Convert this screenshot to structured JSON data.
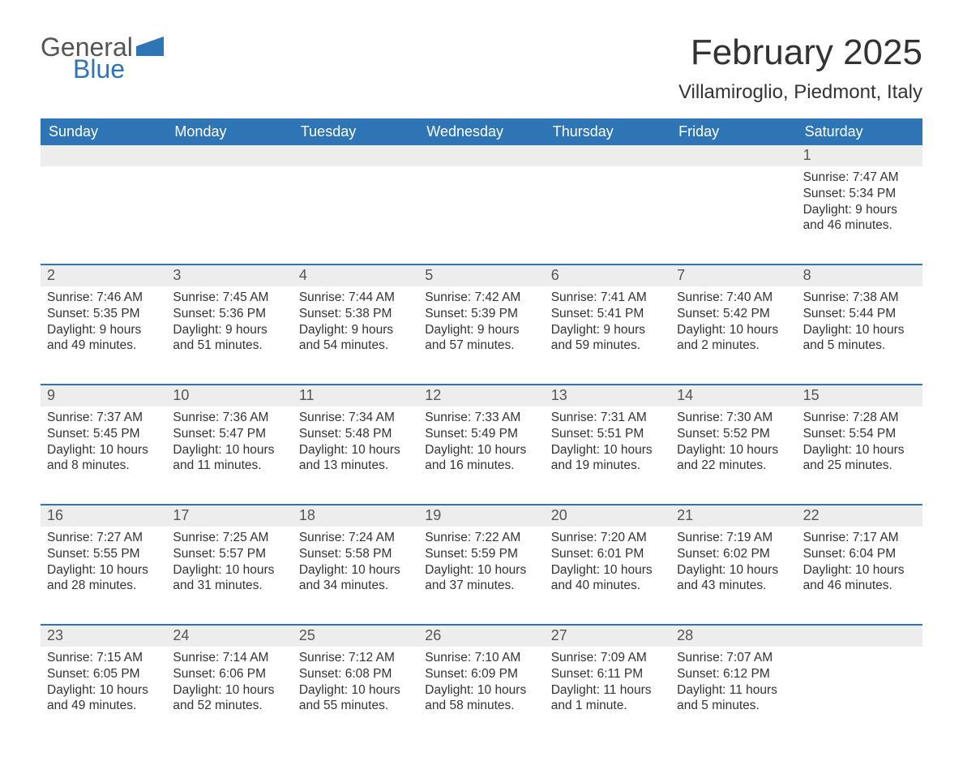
{
  "logo": {
    "general": "General",
    "blue": "Blue"
  },
  "title": "February 2025",
  "location": "Villamiroglio, Piedmont, Italy",
  "colors": {
    "header_bg": "#2e75b6",
    "header_text": "#ffffff",
    "daynum_bg": "#ededed",
    "border": "#2e75b6",
    "body_text": "#333333"
  },
  "fonts": {
    "title_size_pt": 33,
    "location_size_pt": 18,
    "weekday_size_pt": 14,
    "body_size_pt": 12
  },
  "weekdays": [
    "Sunday",
    "Monday",
    "Tuesday",
    "Wednesday",
    "Thursday",
    "Friday",
    "Saturday"
  ],
  "weeks": [
    [
      {
        "n": "",
        "sunrise": "",
        "sunset": "",
        "daylight": ""
      },
      {
        "n": "",
        "sunrise": "",
        "sunset": "",
        "daylight": ""
      },
      {
        "n": "",
        "sunrise": "",
        "sunset": "",
        "daylight": ""
      },
      {
        "n": "",
        "sunrise": "",
        "sunset": "",
        "daylight": ""
      },
      {
        "n": "",
        "sunrise": "",
        "sunset": "",
        "daylight": ""
      },
      {
        "n": "",
        "sunrise": "",
        "sunset": "",
        "daylight": ""
      },
      {
        "n": "1",
        "sunrise": "Sunrise: 7:47 AM",
        "sunset": "Sunset: 5:34 PM",
        "daylight": "Daylight: 9 hours and 46 minutes."
      }
    ],
    [
      {
        "n": "2",
        "sunrise": "Sunrise: 7:46 AM",
        "sunset": "Sunset: 5:35 PM",
        "daylight": "Daylight: 9 hours and 49 minutes."
      },
      {
        "n": "3",
        "sunrise": "Sunrise: 7:45 AM",
        "sunset": "Sunset: 5:36 PM",
        "daylight": "Daylight: 9 hours and 51 minutes."
      },
      {
        "n": "4",
        "sunrise": "Sunrise: 7:44 AM",
        "sunset": "Sunset: 5:38 PM",
        "daylight": "Daylight: 9 hours and 54 minutes."
      },
      {
        "n": "5",
        "sunrise": "Sunrise: 7:42 AM",
        "sunset": "Sunset: 5:39 PM",
        "daylight": "Daylight: 9 hours and 57 minutes."
      },
      {
        "n": "6",
        "sunrise": "Sunrise: 7:41 AM",
        "sunset": "Sunset: 5:41 PM",
        "daylight": "Daylight: 9 hours and 59 minutes."
      },
      {
        "n": "7",
        "sunrise": "Sunrise: 7:40 AM",
        "sunset": "Sunset: 5:42 PM",
        "daylight": "Daylight: 10 hours and 2 minutes."
      },
      {
        "n": "8",
        "sunrise": "Sunrise: 7:38 AM",
        "sunset": "Sunset: 5:44 PM",
        "daylight": "Daylight: 10 hours and 5 minutes."
      }
    ],
    [
      {
        "n": "9",
        "sunrise": "Sunrise: 7:37 AM",
        "sunset": "Sunset: 5:45 PM",
        "daylight": "Daylight: 10 hours and 8 minutes."
      },
      {
        "n": "10",
        "sunrise": "Sunrise: 7:36 AM",
        "sunset": "Sunset: 5:47 PM",
        "daylight": "Daylight: 10 hours and 11 minutes."
      },
      {
        "n": "11",
        "sunrise": "Sunrise: 7:34 AM",
        "sunset": "Sunset: 5:48 PM",
        "daylight": "Daylight: 10 hours and 13 minutes."
      },
      {
        "n": "12",
        "sunrise": "Sunrise: 7:33 AM",
        "sunset": "Sunset: 5:49 PM",
        "daylight": "Daylight: 10 hours and 16 minutes."
      },
      {
        "n": "13",
        "sunrise": "Sunrise: 7:31 AM",
        "sunset": "Sunset: 5:51 PM",
        "daylight": "Daylight: 10 hours and 19 minutes."
      },
      {
        "n": "14",
        "sunrise": "Sunrise: 7:30 AM",
        "sunset": "Sunset: 5:52 PM",
        "daylight": "Daylight: 10 hours and 22 minutes."
      },
      {
        "n": "15",
        "sunrise": "Sunrise: 7:28 AM",
        "sunset": "Sunset: 5:54 PM",
        "daylight": "Daylight: 10 hours and 25 minutes."
      }
    ],
    [
      {
        "n": "16",
        "sunrise": "Sunrise: 7:27 AM",
        "sunset": "Sunset: 5:55 PM",
        "daylight": "Daylight: 10 hours and 28 minutes."
      },
      {
        "n": "17",
        "sunrise": "Sunrise: 7:25 AM",
        "sunset": "Sunset: 5:57 PM",
        "daylight": "Daylight: 10 hours and 31 minutes."
      },
      {
        "n": "18",
        "sunrise": "Sunrise: 7:24 AM",
        "sunset": "Sunset: 5:58 PM",
        "daylight": "Daylight: 10 hours and 34 minutes."
      },
      {
        "n": "19",
        "sunrise": "Sunrise: 7:22 AM",
        "sunset": "Sunset: 5:59 PM",
        "daylight": "Daylight: 10 hours and 37 minutes."
      },
      {
        "n": "20",
        "sunrise": "Sunrise: 7:20 AM",
        "sunset": "Sunset: 6:01 PM",
        "daylight": "Daylight: 10 hours and 40 minutes."
      },
      {
        "n": "21",
        "sunrise": "Sunrise: 7:19 AM",
        "sunset": "Sunset: 6:02 PM",
        "daylight": "Daylight: 10 hours and 43 minutes."
      },
      {
        "n": "22",
        "sunrise": "Sunrise: 7:17 AM",
        "sunset": "Sunset: 6:04 PM",
        "daylight": "Daylight: 10 hours and 46 minutes."
      }
    ],
    [
      {
        "n": "23",
        "sunrise": "Sunrise: 7:15 AM",
        "sunset": "Sunset: 6:05 PM",
        "daylight": "Daylight: 10 hours and 49 minutes."
      },
      {
        "n": "24",
        "sunrise": "Sunrise: 7:14 AM",
        "sunset": "Sunset: 6:06 PM",
        "daylight": "Daylight: 10 hours and 52 minutes."
      },
      {
        "n": "25",
        "sunrise": "Sunrise: 7:12 AM",
        "sunset": "Sunset: 6:08 PM",
        "daylight": "Daylight: 10 hours and 55 minutes."
      },
      {
        "n": "26",
        "sunrise": "Sunrise: 7:10 AM",
        "sunset": "Sunset: 6:09 PM",
        "daylight": "Daylight: 10 hours and 58 minutes."
      },
      {
        "n": "27",
        "sunrise": "Sunrise: 7:09 AM",
        "sunset": "Sunset: 6:11 PM",
        "daylight": "Daylight: 11 hours and 1 minute."
      },
      {
        "n": "28",
        "sunrise": "Sunrise: 7:07 AM",
        "sunset": "Sunset: 6:12 PM",
        "daylight": "Daylight: 11 hours and 5 minutes."
      },
      {
        "n": "",
        "sunrise": "",
        "sunset": "",
        "daylight": ""
      }
    ]
  ]
}
